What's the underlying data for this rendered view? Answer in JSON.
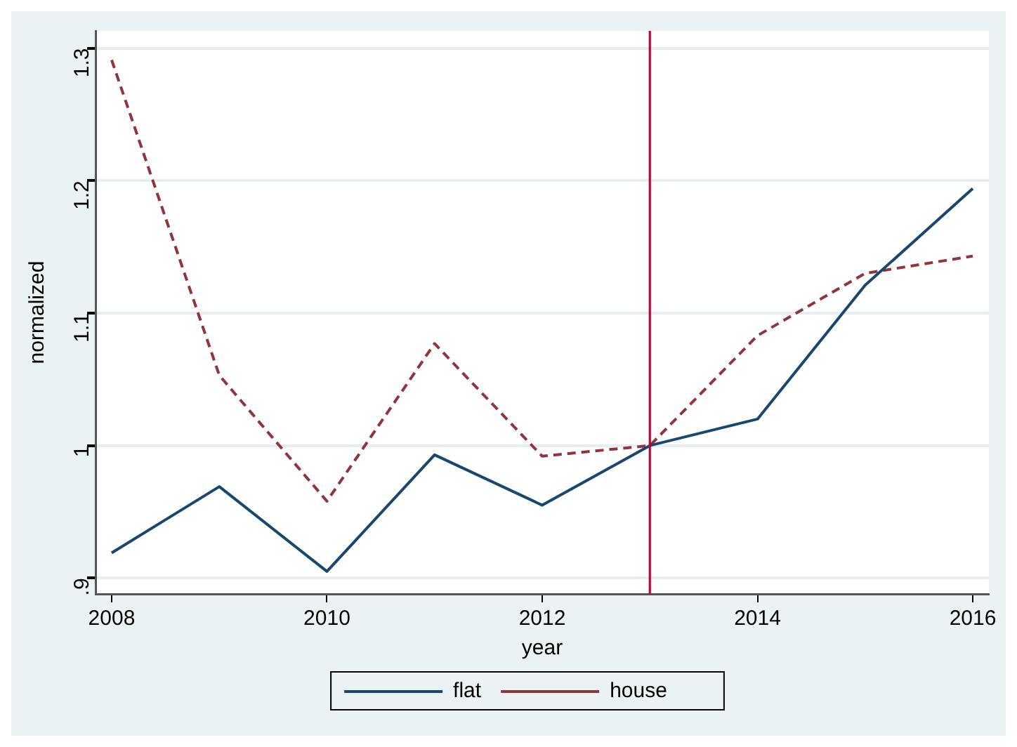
{
  "chart_data": {
    "type": "line",
    "xlabel": "year",
    "ylabel": "normalized",
    "x": [
      2008,
      2009,
      2010,
      2011,
      2012,
      2013,
      2014,
      2015,
      2016
    ],
    "series": [
      {
        "name": "flat",
        "color": "#1a476f",
        "line_style": "solid",
        "values": [
          0.919,
          0.969,
          0.905,
          0.993,
          0.955,
          1.0,
          1.02,
          1.121,
          1.194
        ]
      },
      {
        "name": "house",
        "color": "#90353b",
        "line_style": "dashed",
        "values": [
          1.291,
          1.053,
          0.958,
          1.077,
          0.992,
          1.0,
          1.083,
          1.13,
          1.143
        ]
      }
    ],
    "xlim": [
      2007.85,
      2016.15
    ],
    "xticks": [
      2008,
      2010,
      2012,
      2014,
      2016
    ],
    "ylim": [
      0.888,
      1.313
    ],
    "yticks": [
      {
        "value": 0.9,
        "label": ".9"
      },
      {
        "value": 1,
        "label": "1"
      },
      1.1,
      1.2,
      1.3
    ],
    "ref_lines": [
      {
        "axis": "x",
        "value": 2013,
        "color": "#c10534"
      }
    ],
    "grid": "y",
    "legend": "bottom",
    "marker": "none"
  }
}
